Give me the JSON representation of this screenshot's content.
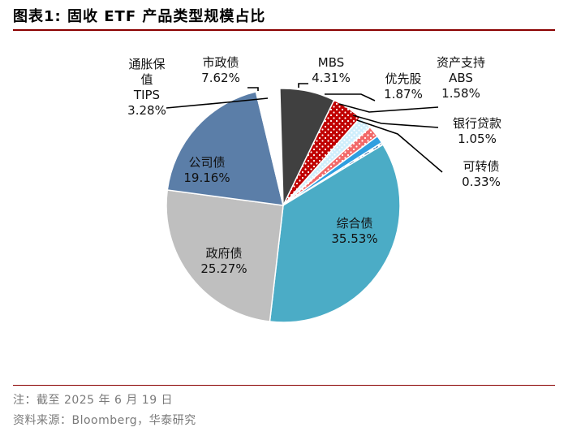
{
  "title": "图表1:  固收 ETF 产品类型规模占比",
  "note": "注：截至 2025 年 6 月 19 日",
  "source": "资料来源：Bloomberg，华泰研究",
  "chart_data": {
    "type": "pie",
    "title": "固收 ETF 产品类型规模占比",
    "slices": [
      {
        "name": "MBS",
        "value": 4.31,
        "label": "4.31%",
        "color": "#c00000",
        "pattern": "dots"
      },
      {
        "name": "优先股",
        "value": 1.87,
        "label": "1.87%",
        "color": "#cfeefc",
        "pattern": "dots-light"
      },
      {
        "name": "资产支持ABS",
        "value": 1.58,
        "label": "1.58%",
        "color": "#f26a6a",
        "pattern": "dots"
      },
      {
        "name": "银行贷款",
        "value": 1.05,
        "label": "1.05%",
        "color": "#2f9ee0",
        "pattern": "solid"
      },
      {
        "name": "可转债",
        "value": 0.33,
        "label": "0.33%",
        "color": "#1f5f9f",
        "pattern": "zigzag"
      },
      {
        "name": "综合债",
        "value": 35.53,
        "label": "35.53%",
        "color": "#4bacc6",
        "pattern": "solid"
      },
      {
        "name": "政府债",
        "value": 25.27,
        "label": "25.27%",
        "color": "#bfbfbf",
        "pattern": "solid"
      },
      {
        "name": "公司债",
        "value": 19.16,
        "label": "19.16%",
        "color": "#5b7ea8",
        "pattern": "solid"
      },
      {
        "name": "通胀保值TIPS",
        "value": 3.28,
        "label": "3.28%",
        "color": "#ffffff",
        "pattern": "solid"
      },
      {
        "name": "市政债",
        "value": 7.62,
        "label": "7.62%",
        "color": "#404040",
        "pattern": "solid"
      }
    ],
    "label_lines": {
      "MBS": [
        "MBS",
        "4.31%"
      ],
      "优先股": [
        "优先股",
        "1.87%"
      ],
      "资产支持ABS": [
        "资产支持",
        "ABS",
        "1.58%"
      ],
      "银行贷款": [
        "银行贷款",
        "1.05%"
      ],
      "可转债": [
        "可转债",
        "0.33%"
      ],
      "综合债": [
        "综合债",
        "35.53%"
      ],
      "政府债": [
        "政府债",
        "25.27%"
      ],
      "公司债": [
        "公司债",
        "19.16%"
      ],
      "通胀保值TIPS": [
        "通胀保",
        "值",
        "TIPS",
        "3.28%"
      ],
      "市政债": [
        "市政债",
        "7.62%"
      ]
    }
  }
}
